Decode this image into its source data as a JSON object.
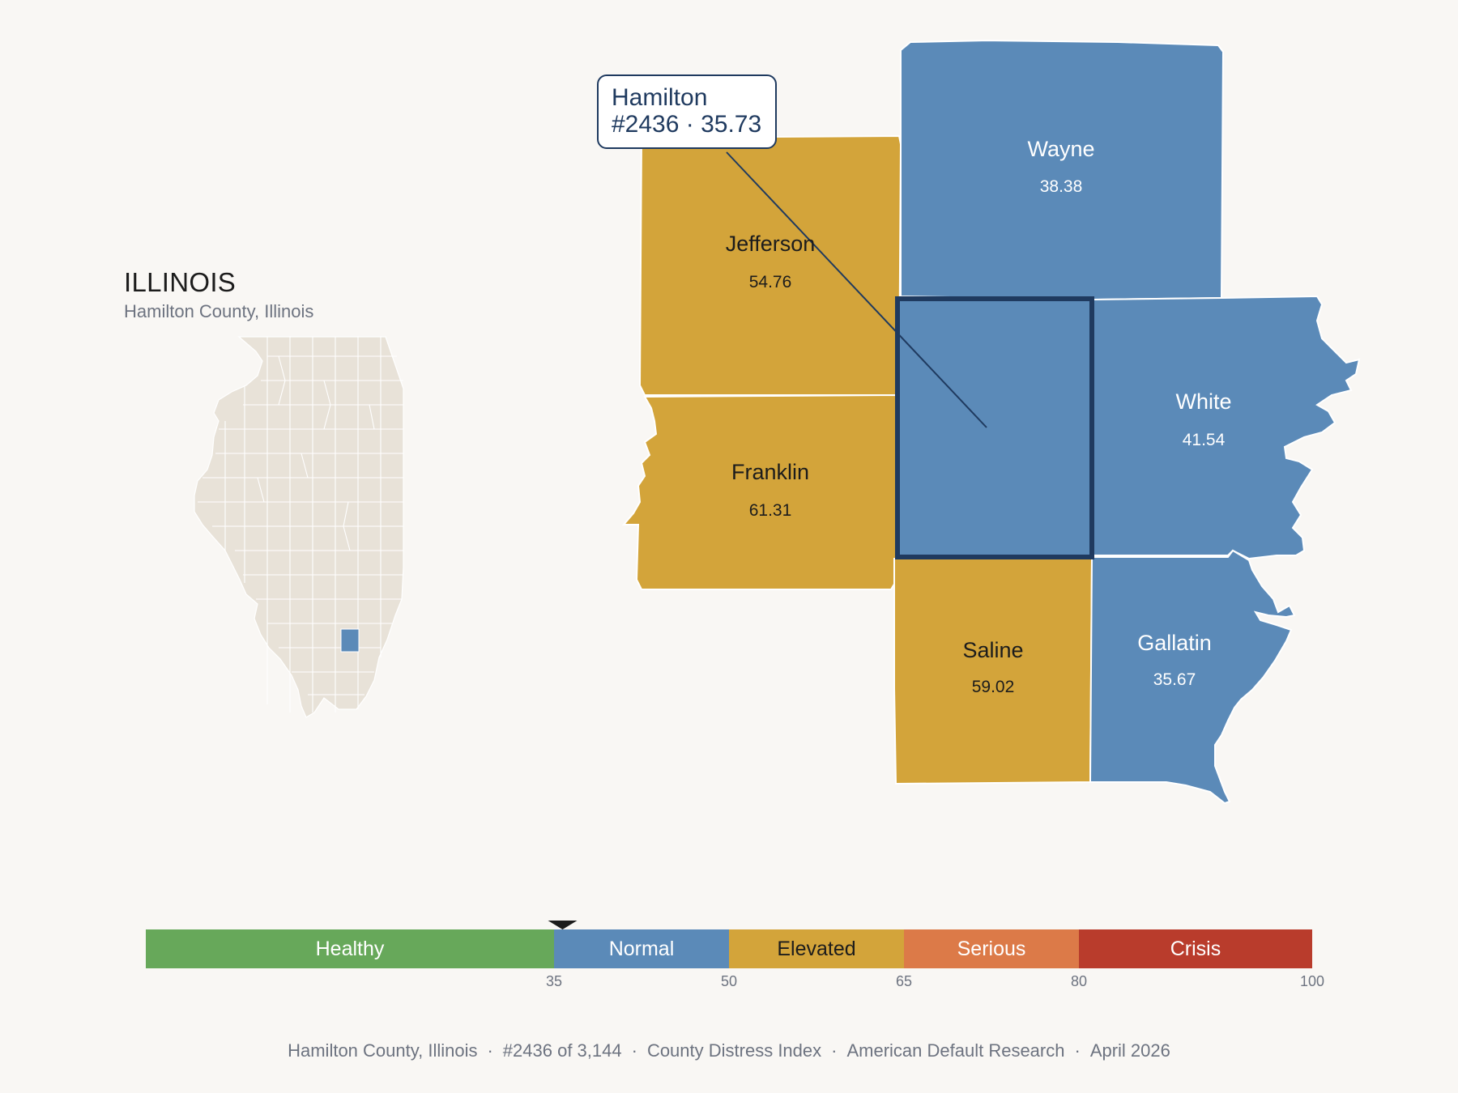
{
  "state": {
    "title": "ILLINOIS",
    "subtitle": "Hamilton County, Illinois"
  },
  "callout": {
    "name": "Hamilton",
    "detail": "#2436 · 35.73"
  },
  "counties": [
    {
      "key": "jefferson",
      "name": "Jefferson",
      "value": "54.76",
      "category": "Elevated"
    },
    {
      "key": "franklin",
      "name": "Franklin",
      "value": "61.31",
      "category": "Elevated"
    },
    {
      "key": "wayne",
      "name": "Wayne",
      "value": "38.38",
      "category": "Normal"
    },
    {
      "key": "white",
      "name": "White",
      "value": "41.54",
      "category": "Normal"
    },
    {
      "key": "saline",
      "name": "Saline",
      "value": "59.02",
      "category": "Elevated"
    },
    {
      "key": "gallatin",
      "name": "Gallatin",
      "value": "35.67",
      "category": "Normal"
    },
    {
      "key": "hamilton",
      "name": "",
      "value": "",
      "category": "Normal",
      "selected": true
    }
  ],
  "legend": {
    "marker_value": 35.73,
    "range": [
      0,
      100
    ],
    "bands": [
      {
        "label": "Healthy",
        "from": 0,
        "to": 35,
        "color": "#67a85a"
      },
      {
        "label": "Normal",
        "from": 35,
        "to": 50,
        "color": "#5b8ab8"
      },
      {
        "label": "Elevated",
        "from": 50,
        "to": 65,
        "color": "#d3a43a"
      },
      {
        "label": "Serious",
        "from": 65,
        "to": 80,
        "color": "#dc7a48"
      },
      {
        "label": "Crisis",
        "from": 80,
        "to": 100,
        "color": "#b93c2c"
      }
    ],
    "ticks": [
      "35",
      "50",
      "65",
      "80",
      "100"
    ]
  },
  "colors": {
    "normal": "#5b8ab8",
    "elevated": "#d3a43a",
    "highlight_border": "#1f3a5f",
    "state_fill": "#e8e2d8",
    "background": "#f9f7f4"
  },
  "footer": {
    "items": [
      "Hamilton County, Illinois",
      "#2436 of 3,144",
      "County Distress Index",
      "American Default Research",
      "April 2026"
    ]
  }
}
